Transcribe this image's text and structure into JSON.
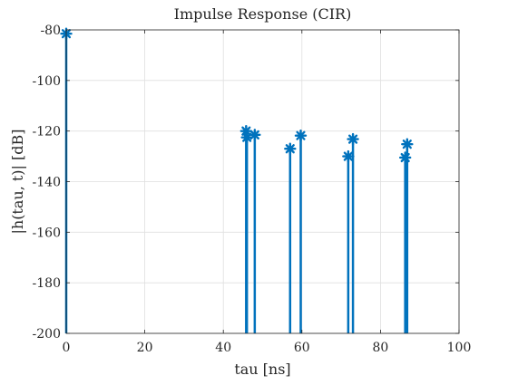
{
  "chart_data": {
    "type": "stem",
    "title": "Impulse Response (CIR)",
    "xlabel": "tau [ns]",
    "ylabel": "|h(tau, t)|   [dB]",
    "xlim": [
      0,
      100
    ],
    "ylim": [
      -200,
      -80
    ],
    "xticks": [
      0,
      20,
      40,
      60,
      80,
      100
    ],
    "yticks": [
      -200,
      -180,
      -160,
      -140,
      -120,
      -100,
      -80
    ],
    "xtick_labels": [
      "0",
      "20",
      "40",
      "60",
      "80",
      "100"
    ],
    "ytick_labels": [
      "-200",
      "-180",
      "-160",
      "-140",
      "-120",
      "-100",
      "-80"
    ],
    "grid": true,
    "baseline": -200,
    "marker": "asterisk",
    "series": [
      {
        "color": "#0072BD",
        "points": [
          {
            "x": 0,
            "y": -81.5
          },
          {
            "x": 45.8,
            "y": -120.0
          },
          {
            "x": 46.0,
            "y": -122.5
          },
          {
            "x": 48.0,
            "y": -121.5
          },
          {
            "x": 57.0,
            "y": -127.0
          },
          {
            "x": 59.7,
            "y": -121.8
          },
          {
            "x": 71.8,
            "y": -130.0
          },
          {
            "x": 73.0,
            "y": -123.2
          },
          {
            "x": 86.3,
            "y": -130.5
          },
          {
            "x": 86.8,
            "y": -125.2
          }
        ]
      }
    ]
  }
}
